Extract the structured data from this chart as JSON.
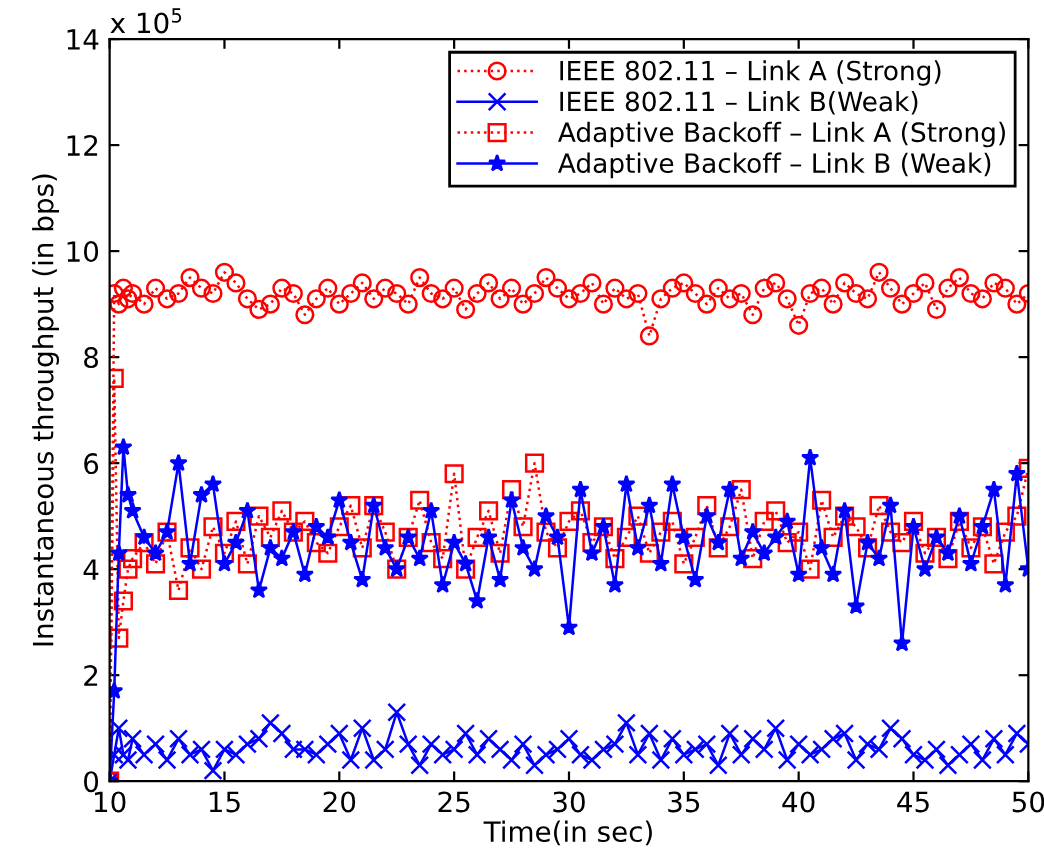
{
  "chart_data": {
    "type": "line",
    "xlabel": "Time(in sec)",
    "ylabel": "Instantaneous throughput (in bps)",
    "annotations": [
      "x 10$^{5}$"
    ],
    "xlim": [
      10,
      50
    ],
    "xticks": [
      10,
      15,
      20,
      25,
      30,
      35,
      40,
      45,
      50
    ],
    "ylim": [
      0,
      14
    ],
    "yticks": [
      0,
      2,
      4,
      6,
      8,
      10,
      12,
      14
    ],
    "grid": false,
    "legend": "top right",
    "x": [
      10,
      10.2,
      10.4,
      10.6,
      10.8,
      11,
      11.5,
      12,
      12.5,
      13,
      13.5,
      14,
      14.5,
      15,
      15.5,
      16,
      16.5,
      17,
      17.5,
      18,
      18.5,
      19,
      19.5,
      20,
      20.5,
      21,
      21.5,
      22,
      22.5,
      23,
      23.5,
      24,
      24.5,
      25,
      25.5,
      26,
      26.5,
      27,
      27.5,
      28,
      28.5,
      29,
      29.5,
      30,
      30.5,
      31,
      31.5,
      32,
      32.5,
      33,
      33.5,
      34,
      34.5,
      35,
      35.5,
      36,
      36.5,
      37,
      37.5,
      38,
      38.5,
      39,
      39.5,
      40,
      40.5,
      41,
      41.5,
      42,
      42.5,
      43,
      43.5,
      44,
      44.5,
      45,
      45.5,
      46,
      46.5,
      47,
      47.5,
      48,
      48.5,
      49,
      49.5,
      50
    ],
    "series": [
      {
        "name": "IEEE 802.11 – Link A (Strong)",
        "color": "#ff0000",
        "marker": "circle",
        "line_style": "dotted",
        "values": [
          0,
          9.2,
          9.0,
          9.3,
          9.1,
          9.2,
          9.0,
          9.3,
          9.1,
          9.2,
          9.5,
          9.3,
          9.2,
          9.6,
          9.4,
          9.1,
          8.9,
          9.0,
          9.3,
          9.2,
          8.8,
          9.1,
          9.3,
          9.0,
          9.2,
          9.4,
          9.1,
          9.3,
          9.2,
          9.0,
          9.5,
          9.2,
          9.1,
          9.3,
          8.9,
          9.2,
          9.4,
          9.1,
          9.3,
          9.0,
          9.2,
          9.5,
          9.3,
          9.1,
          9.2,
          9.4,
          9.0,
          9.3,
          9.1,
          9.2,
          8.4,
          9.1,
          9.3,
          9.4,
          9.2,
          9.0,
          9.3,
          9.1,
          9.2,
          8.8,
          9.3,
          9.4,
          9.1,
          8.6,
          9.2,
          9.3,
          9.0,
          9.4,
          9.2,
          9.1,
          9.6,
          9.3,
          9.0,
          9.2,
          9.4,
          8.9,
          9.3,
          9.5,
          9.2,
          9.1,
          9.4,
          9.3,
          9.0,
          9.2
        ]
      },
      {
        "name": "IEEE 802.11 – Link B(Weak)",
        "color": "#0000ff",
        "marker": "cross",
        "line_style": "solid",
        "values": [
          0,
          0.5,
          1.0,
          0.5,
          0.4,
          0.8,
          0.5,
          0.7,
          0.4,
          0.8,
          0.5,
          0.6,
          0.2,
          0.6,
          0.5,
          0.7,
          0.8,
          1.1,
          0.9,
          0.6,
          0.6,
          0.5,
          0.7,
          0.9,
          0.4,
          1.0,
          0.4,
          0.6,
          1.3,
          0.7,
          0.3,
          0.7,
          0.5,
          0.6,
          0.9,
          0.5,
          0.8,
          0.6,
          0.4,
          0.7,
          0.3,
          0.5,
          0.6,
          0.8,
          0.5,
          0.4,
          0.6,
          0.7,
          1.1,
          0.5,
          0.9,
          0.4,
          0.8,
          0.5,
          0.6,
          0.7,
          0.3,
          0.9,
          0.5,
          0.8,
          0.6,
          1.0,
          0.4,
          0.7,
          0.5,
          0.6,
          0.8,
          0.9,
          0.4,
          0.7,
          0.6,
          1.0,
          0.8,
          0.5,
          0.4,
          0.6,
          0.3,
          0.5,
          0.7,
          0.4,
          0.8,
          0.5,
          0.9,
          0.7
        ]
      },
      {
        "name": "Adaptive Backoff – Link A (Strong)",
        "color": "#ff0000",
        "marker": "square",
        "line_style": "dotted",
        "values": [
          0,
          7.6,
          2.7,
          3.4,
          4.0,
          4.2,
          4.5,
          4.1,
          4.7,
          3.6,
          4.4,
          4.0,
          4.8,
          4.3,
          4.9,
          4.1,
          5.0,
          4.6,
          5.1,
          4.7,
          4.9,
          4.5,
          4.3,
          4.8,
          5.2,
          4.4,
          5.2,
          4.7,
          4.0,
          4.6,
          5.3,
          4.5,
          4.2,
          5.8,
          4.0,
          4.6,
          5.1,
          4.3,
          5.5,
          4.8,
          6.0,
          4.7,
          4.4,
          4.9,
          5.1,
          4.5,
          4.8,
          4.2,
          4.6,
          5.0,
          4.3,
          4.7,
          4.9,
          4.1,
          4.6,
          5.2,
          4.4,
          4.8,
          5.5,
          4.2,
          4.9,
          5.1,
          4.5,
          4.7,
          4.0,
          5.3,
          4.6,
          5.0,
          4.8,
          4.4,
          5.2,
          4.7,
          4.5,
          4.9,
          4.3,
          4.6,
          4.2,
          4.9,
          4.4,
          4.8,
          4.1,
          4.7,
          5.0,
          5.9
        ]
      },
      {
        "name": "Adaptive Backoff – Link B (Weak)",
        "color": "#0000ff",
        "marker": "star",
        "line_style": "solid",
        "values": [
          0,
          1.7,
          4.3,
          6.3,
          5.4,
          5.1,
          4.6,
          4.3,
          4.7,
          6.0,
          4.1,
          5.4,
          5.6,
          4.1,
          4.5,
          5.1,
          3.6,
          4.4,
          4.2,
          4.7,
          3.9,
          4.8,
          4.6,
          5.3,
          4.5,
          3.8,
          5.2,
          4.4,
          4.0,
          4.6,
          4.2,
          5.1,
          3.7,
          4.5,
          4.1,
          3.4,
          4.6,
          3.8,
          5.3,
          4.4,
          4.0,
          5.0,
          4.6,
          2.9,
          5.5,
          4.3,
          4.8,
          3.7,
          5.6,
          4.4,
          5.2,
          4.1,
          5.6,
          4.6,
          3.8,
          5.0,
          4.5,
          5.5,
          4.2,
          4.7,
          4.3,
          4.6,
          4.9,
          3.9,
          6.1,
          4.4,
          3.9,
          5.1,
          3.3,
          4.5,
          4.2,
          5.2,
          2.6,
          4.8,
          4.0,
          4.6,
          4.3,
          5.0,
          4.1,
          4.8,
          5.5,
          3.7,
          5.8,
          4.0
        ]
      }
    ]
  }
}
